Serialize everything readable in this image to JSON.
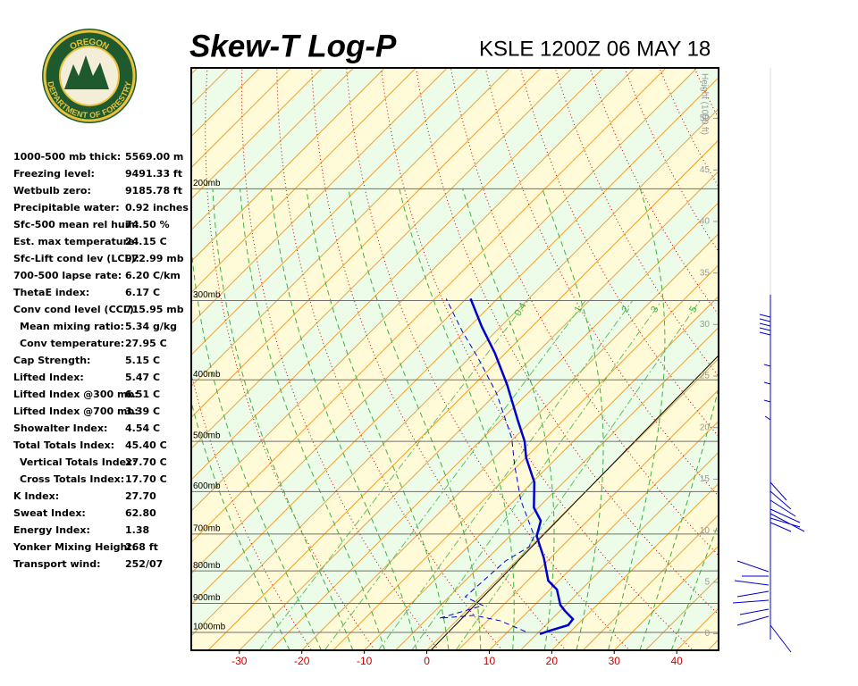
{
  "logo": {
    "top": "OREGON",
    "bottom": "DEPARTMENT OF FORESTRY"
  },
  "stats": [
    {
      "label": "1000-500 mb thick:",
      "value": "5569.00 m"
    },
    {
      "label": "Freezing level:",
      "value": "9491.33 ft"
    },
    {
      "label": "Wetbulb zero:",
      "value": "9185.78 ft"
    },
    {
      "label": "Precipitable water:",
      "value": "0.92 inches"
    },
    {
      "label": "Sfc-500 mean rel hum:",
      "value": "74.50 %"
    },
    {
      "label": "Est. max temperature:",
      "value": "24.15 C"
    },
    {
      "label": "Sfc-Lift cond lev (LCL):",
      "value": "972.99 mb"
    },
    {
      "label": "700-500 lapse rate:",
      "value": "6.20 C/km"
    },
    {
      "label": "ThetaE index:",
      "value": "6.17 C"
    },
    {
      "label": "Conv cond level (CCL):",
      "value": "715.95 mb"
    },
    {
      "label": "Mean mixing ratio:",
      "value": "5.34 g/kg",
      "indent": true
    },
    {
      "label": "Conv temperature:",
      "value": "27.95 C",
      "indent": true
    },
    {
      "label": "Cap Strength:",
      "value": "5.15 C"
    },
    {
      "label": "Lifted Index:",
      "value": "5.47 C"
    },
    {
      "label": "Lifted Index @300 mb:",
      "value": "6.51 C"
    },
    {
      "label": "Lifted Index @700 mb:",
      "value": "3.39 C"
    },
    {
      "label": "Showalter Index:",
      "value": "4.54 C"
    },
    {
      "label": "Total Totals Index:",
      "value": "45.40 C"
    },
    {
      "label": "Vertical Totals Index:",
      "value": "27.70 C",
      "indent": true
    },
    {
      "label": "Cross Totals Index:",
      "value": "17.70 C",
      "indent": true
    },
    {
      "label": "K Index:",
      "value": "27.70"
    },
    {
      "label": "Sweat Index:",
      "value": "62.80"
    },
    {
      "label": "Energy Index:",
      "value": "1.38"
    },
    {
      "label": "Yonker Mixing Height:",
      "value": "268 ft"
    },
    {
      "label": "Transport wind:",
      "value": "252/07"
    }
  ],
  "chart_data": {
    "type": "skew-t",
    "title": "Skew-T Log-P",
    "subtitle": "KSLE 1200Z 06 MAY 18",
    "xlim": [
      -37.7,
      46.7
    ],
    "xticks": [
      -30,
      -20,
      -10,
      0,
      10,
      20,
      30,
      40
    ],
    "ylim": [
      1067,
      129
    ],
    "yscale": "log",
    "yticks": [
      {
        "value": 200,
        "label": "200mb"
      },
      {
        "value": 300,
        "label": "300mb"
      },
      {
        "value": 400,
        "label": "400mb"
      },
      {
        "value": 500,
        "label": "500mb"
      },
      {
        "value": 600,
        "label": "600mb"
      },
      {
        "value": 700,
        "label": "700mb"
      },
      {
        "value": 800,
        "label": "800mb"
      },
      {
        "value": 900,
        "label": "900mb"
      },
      {
        "value": 1000,
        "label": "1000mb"
      }
    ],
    "y2label": "Height (1000 ft)",
    "y2lim": [
      -1.6,
      54.9
    ],
    "y2ticks": [
      0,
      5,
      10,
      15,
      20,
      25,
      30,
      35,
      40,
      45,
      50
    ],
    "mixing_ratio_labels": [
      "0.4",
      "1",
      "2",
      "3",
      "5"
    ],
    "series": [
      {
        "color": "#0000cc",
        "dash": false,
        "pressure": [
          1006,
          994,
          974,
          953,
          925,
          905,
          856,
          829,
          764,
          705,
          667,
          636,
          580,
          530,
          500,
          463,
          407,
          363,
          330,
          298
        ],
        "values": [
          15.5,
          16.5,
          18.6,
          18.4,
          15.8,
          14.1,
          11.1,
          8.3,
          4.0,
          -0.7,
          -2.5,
          -5.7,
          -9.7,
          -15.0,
          -17.8,
          -22.3,
          -29.7,
          -36.7,
          -43.0,
          -49.3
        ]
      },
      {
        "color": "#0000cc",
        "dash": true,
        "pressure": [
          997,
          959,
          940,
          950,
          907,
          879,
          772,
          733,
          705,
          619,
          544,
          494,
          420,
          369,
          335,
          298
        ],
        "values": [
          12.8,
          7.1,
          2.0,
          -3.1,
          1.8,
          -2.4,
          -1.7,
          -0.2,
          -1.1,
          -9.0,
          -15.7,
          -20.4,
          -30.0,
          -38.7,
          -45.5,
          -53.2
        ]
      }
    ]
  }
}
